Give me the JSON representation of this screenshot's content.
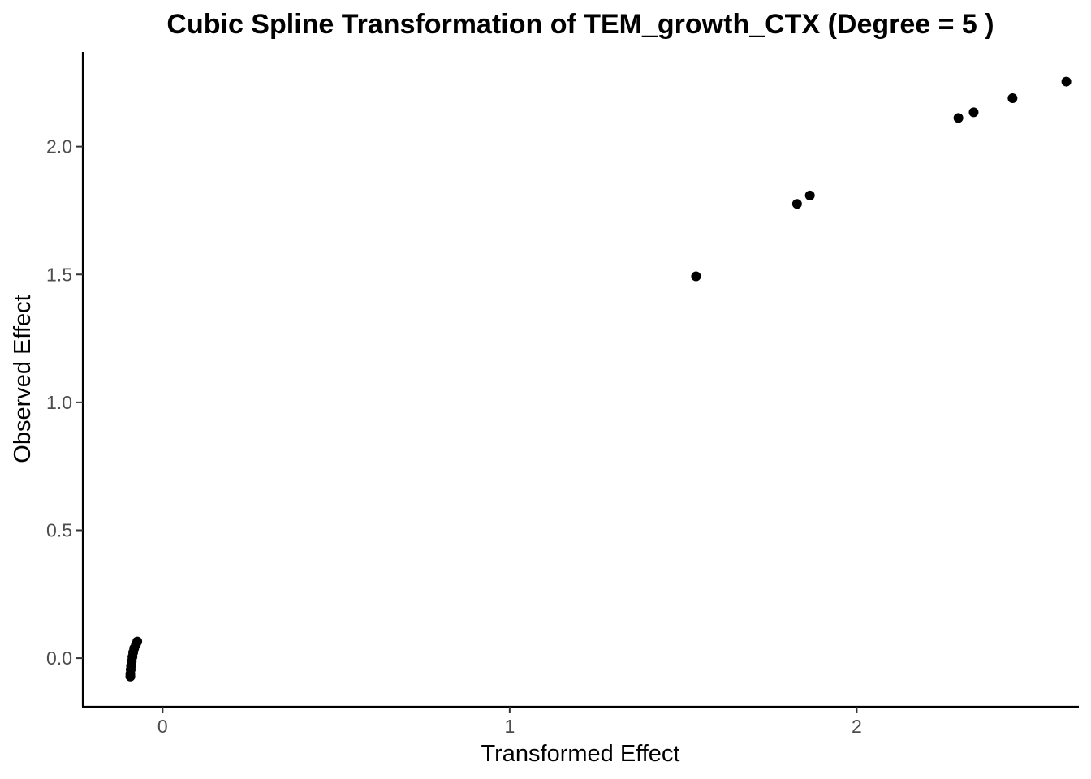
{
  "chart_data": {
    "type": "scatter",
    "title": "Cubic Spline Transformation of TEM_growth_CTX (Degree = 5 )",
    "xlabel": "Transformed Effect",
    "ylabel": "Observed Effect",
    "xlim": [
      -0.23,
      2.64
    ],
    "ylim": [
      -0.19,
      2.37
    ],
    "x_ticks": [
      {
        "value": 0,
        "label": "0"
      },
      {
        "value": 1,
        "label": "1"
      },
      {
        "value": 2,
        "label": "2"
      }
    ],
    "y_ticks": [
      {
        "value": 0.0,
        "label": "0.0"
      },
      {
        "value": 0.5,
        "label": "0.5"
      },
      {
        "value": 1.0,
        "label": "1.0"
      },
      {
        "value": 1.5,
        "label": "1.5"
      },
      {
        "value": 2.0,
        "label": "2.0"
      }
    ],
    "grid": false,
    "legend": "none",
    "point_color": "#000000",
    "points": [
      {
        "x": -0.093,
        "y": -0.072
      },
      {
        "x": -0.093,
        "y": -0.062
      },
      {
        "x": -0.092,
        "y": -0.045
      },
      {
        "x": -0.091,
        "y": -0.03
      },
      {
        "x": -0.089,
        "y": -0.012
      },
      {
        "x": -0.087,
        "y": 0.005
      },
      {
        "x": -0.085,
        "y": 0.022
      },
      {
        "x": -0.082,
        "y": 0.038
      },
      {
        "x": -0.077,
        "y": 0.053
      },
      {
        "x": -0.073,
        "y": 0.065
      },
      {
        "x": 1.537,
        "y": 1.493
      },
      {
        "x": 1.828,
        "y": 1.776
      },
      {
        "x": 1.865,
        "y": 1.809
      },
      {
        "x": 2.293,
        "y": 2.112
      },
      {
        "x": 2.337,
        "y": 2.134
      },
      {
        "x": 2.449,
        "y": 2.189
      },
      {
        "x": 2.604,
        "y": 2.254
      }
    ]
  }
}
